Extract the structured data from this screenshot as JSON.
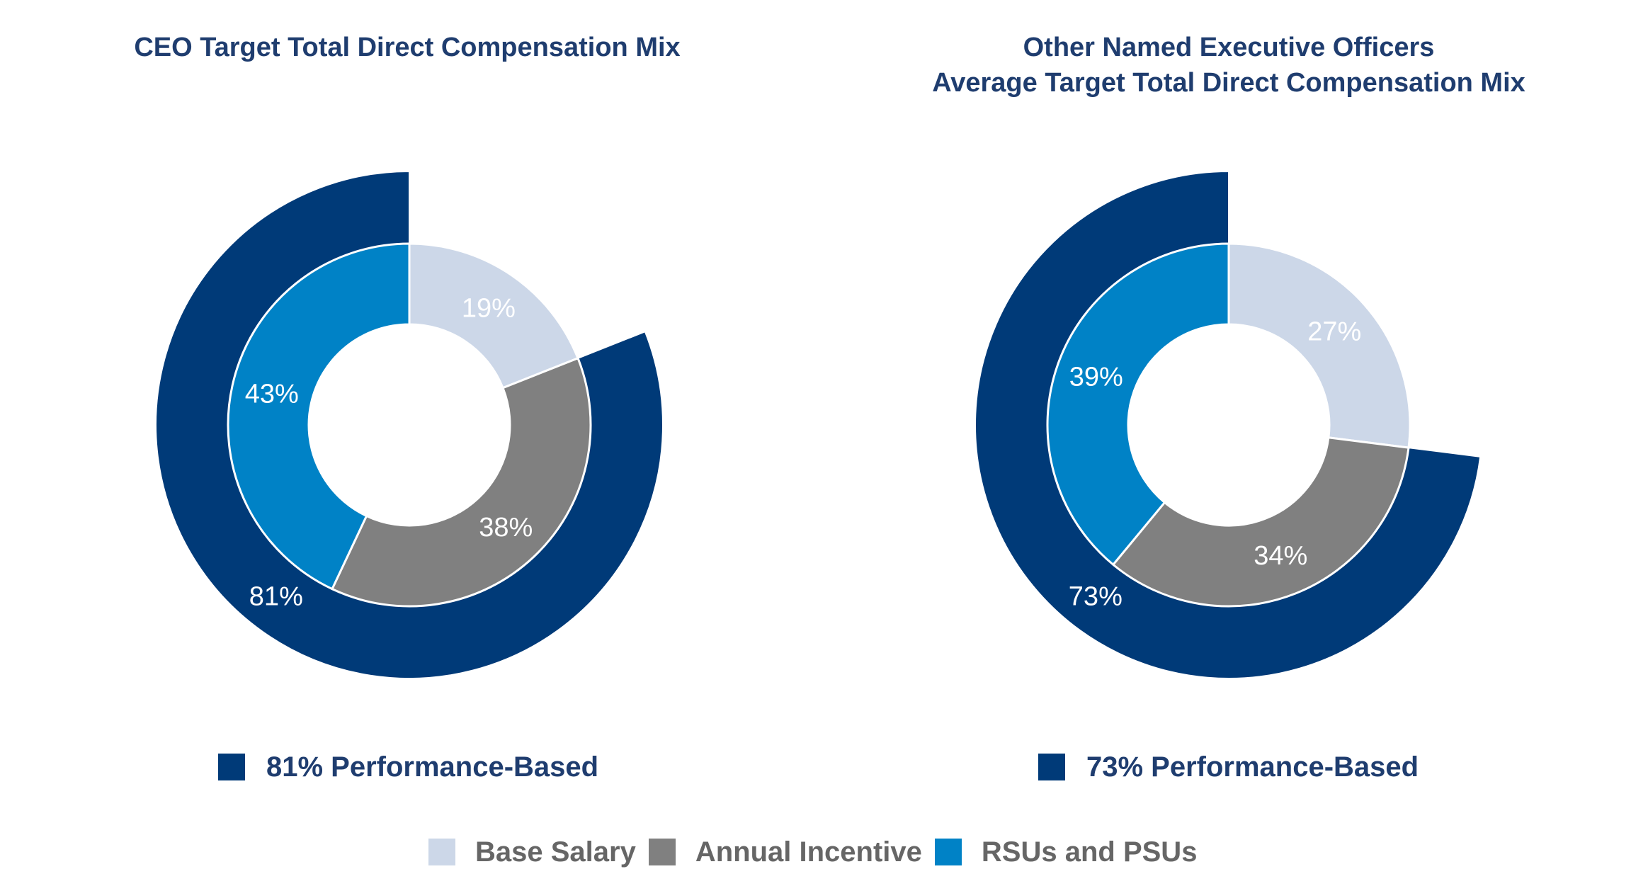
{
  "chart_data": [
    {
      "type": "pie",
      "title": "CEO Target Total Direct Compensation Mix",
      "inner": {
        "categories": [
          "Base Salary",
          "Annual Incentive",
          "RSUs and PSUs"
        ],
        "values": [
          19,
          38,
          43
        ],
        "labels": [
          "19%",
          "38%",
          "43%"
        ]
      },
      "outer": {
        "name": "Performance-Based",
        "value": 81,
        "label": "81%"
      },
      "legend_text": "81% Performance-Based"
    },
    {
      "type": "pie",
      "title_lines": [
        "Other Named Executive Officers",
        "Average Target Total Direct Compensation Mix"
      ],
      "inner": {
        "categories": [
          "Base Salary",
          "Annual Incentive",
          "RSUs and PSUs"
        ],
        "values": [
          27,
          34,
          39
        ],
        "labels": [
          "27%",
          "34%",
          "39%"
        ]
      },
      "outer": {
        "name": "Performance-Based",
        "value": 73,
        "label": "73%"
      },
      "legend_text": "73% Performance-Based"
    }
  ],
  "legend": {
    "items": [
      {
        "label": "Base Salary",
        "color": "#ccd7e8"
      },
      {
        "label": "Annual Incentive",
        "color": "#808080"
      },
      {
        "label": "RSUs and PSUs",
        "color": "#0082c6"
      }
    ],
    "performance_color": "#003a78"
  }
}
